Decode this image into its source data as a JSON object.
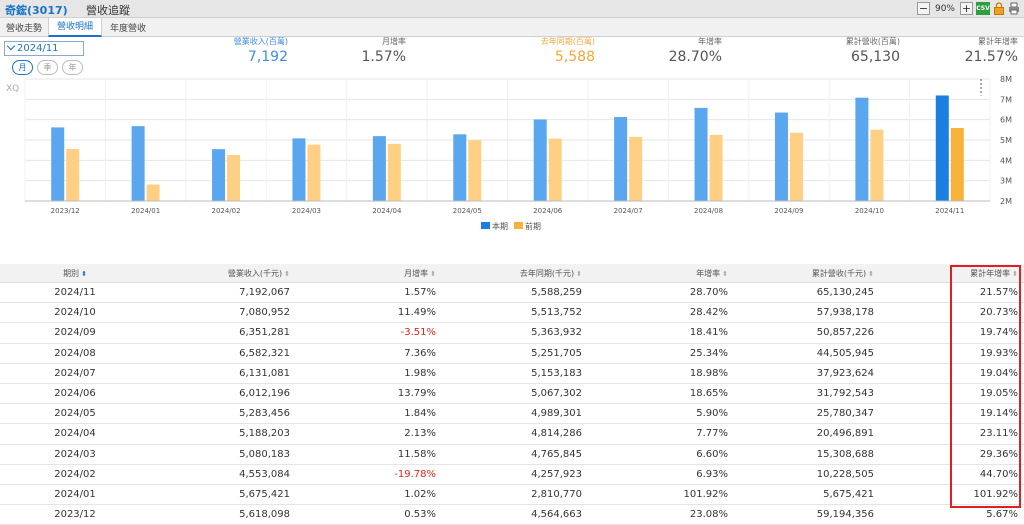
{
  "window": {
    "stock": "奇鋐(3017)",
    "page_title": "營收追蹤",
    "zoom": "90%",
    "zoom_out_label": "−",
    "zoom_in_label": "+",
    "csv_label": "CSV"
  },
  "tabs": [
    "營收走勢",
    "營收明細",
    "年度營收"
  ],
  "active_tab": "營收明細",
  "period_select": "2024/11",
  "period_toggles": [
    "月",
    "季",
    "年"
  ],
  "watermark": "XQ",
  "stats": [
    {
      "label": "營業收入(百萬)",
      "value": "7,192",
      "style": "blue"
    },
    {
      "label": "月增率",
      "value": "1.57%",
      "style": "plain"
    },
    {
      "label": "去年同期(百萬)",
      "value": "5,588",
      "style": "orange"
    },
    {
      "label": "年增率",
      "value": "28.70%",
      "style": "plain"
    },
    {
      "label": "累計營收(百萬)",
      "value": "65,130",
      "style": "plain"
    },
    {
      "label": "累計年增率",
      "value": "21.57%",
      "style": "plain"
    }
  ],
  "colors": {
    "current": "#5aa6ef",
    "current_selected": "#1a7fe0",
    "previous": "#ffd083",
    "previous_selected": "#f7b23b",
    "grid": "#e6e6e6",
    "highlight": "#e02020"
  },
  "chart_data": {
    "type": "bar",
    "categories": [
      "2023/12",
      "2024/01",
      "2024/02",
      "2024/03",
      "2024/04",
      "2024/05",
      "2024/06",
      "2024/07",
      "2024/08",
      "2024/09",
      "2024/10",
      "2024/11"
    ],
    "series": [
      {
        "name": "本期",
        "values": [
          5.62,
          5.68,
          4.55,
          5.08,
          5.19,
          5.28,
          6.01,
          6.13,
          6.58,
          6.35,
          7.08,
          7.19
        ]
      },
      {
        "name": "前期",
        "values": [
          4.56,
          2.81,
          4.26,
          4.77,
          4.81,
          4.99,
          5.07,
          5.15,
          5.25,
          5.36,
          5.51,
          5.59
        ]
      }
    ],
    "ylim": [
      2,
      8
    ],
    "yticks": [
      "2M",
      "3M",
      "4M",
      "5M",
      "6M",
      "7M",
      "8M"
    ],
    "ytick_values": [
      2,
      3,
      4,
      5,
      6,
      7,
      8
    ],
    "legend_position": "bottom",
    "selected_category": "2024/11"
  },
  "table": {
    "headers": [
      "期別",
      "營業收入(千元)",
      "月增率",
      "去年同期(千元)",
      "年增率",
      "累計營收(千元)",
      "累計年增率"
    ],
    "sort_icons": [
      "⬍",
      "⬍",
      "⬍",
      "⬍",
      "⬍",
      "⬍",
      "⬍"
    ],
    "rows": [
      [
        "2024/11",
        "7,192,067",
        "1.57%",
        "5,588,259",
        "28.70%",
        "65,130,245",
        "21.57%"
      ],
      [
        "2024/10",
        "7,080,952",
        "11.49%",
        "5,513,752",
        "28.42%",
        "57,938,178",
        "20.73%"
      ],
      [
        "2024/09",
        "6,351,281",
        "-3.51%",
        "5,363,932",
        "18.41%",
        "50,857,226",
        "19.74%"
      ],
      [
        "2024/08",
        "6,582,321",
        "7.36%",
        "5,251,705",
        "25.34%",
        "44,505,945",
        "19.93%"
      ],
      [
        "2024/07",
        "6,131,081",
        "1.98%",
        "5,153,183",
        "18.98%",
        "37,923,624",
        "19.04%"
      ],
      [
        "2024/06",
        "6,012,196",
        "13.79%",
        "5,067,302",
        "18.65%",
        "31,792,543",
        "19.05%"
      ],
      [
        "2024/05",
        "5,283,456",
        "1.84%",
        "4,989,301",
        "5.90%",
        "25,780,347",
        "19.14%"
      ],
      [
        "2024/04",
        "5,188,203",
        "2.13%",
        "4,814,286",
        "7.77%",
        "20,496,891",
        "23.11%"
      ],
      [
        "2024/03",
        "5,080,183",
        "11.58%",
        "4,765,845",
        "6.60%",
        "15,308,688",
        "29.36%"
      ],
      [
        "2024/02",
        "4,553,084",
        "-19.78%",
        "4,257,923",
        "6.93%",
        "10,228,505",
        "44.70%"
      ],
      [
        "2024/01",
        "5,675,421",
        "1.02%",
        "2,810,770",
        "101.92%",
        "5,675,421",
        "101.92%"
      ],
      [
        "2023/12",
        "5,618,098",
        "0.53%",
        "4,564,663",
        "23.08%",
        "59,194,356",
        "5.67%"
      ]
    ]
  }
}
